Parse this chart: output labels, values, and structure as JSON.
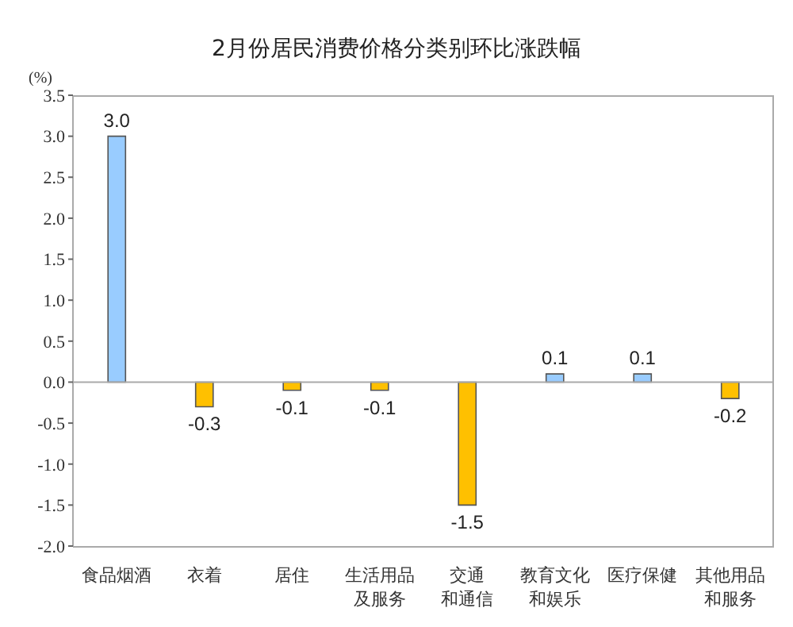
{
  "chart_data": {
    "type": "bar",
    "title": "2月份居民消费价格分类别环比涨跌幅",
    "ylabel": "(%)",
    "categories": [
      "食品烟酒",
      "衣着",
      "居住",
      "生活用品及服务",
      "交通和通信",
      "教育文化和娱乐",
      "医疗保健",
      "其他用品和服务"
    ],
    "value_labels": [
      "3.0",
      "-0.3",
      "-0.1",
      "-0.1",
      "-1.5",
      "0.1",
      "0.1",
      "-0.2"
    ],
    "values": [
      3.0,
      -0.3,
      -0.1,
      -0.1,
      -1.5,
      0.1,
      0.1,
      -0.2
    ],
    "colors": [
      "#99ccff",
      "#ffc000",
      "#ffc000",
      "#ffc000",
      "#ffc000",
      "#99ccff",
      "#99ccff",
      "#ffc000"
    ],
    "ylim": [
      -2.0,
      3.5
    ],
    "yticks": [
      {
        "value": -2,
        "label": "-2.0"
      },
      {
        "value": -1.5,
        "label": "-1.5"
      },
      {
        "value": -1,
        "label": "-1.0"
      },
      {
        "value": -0.5,
        "label": "-0.5"
      },
      {
        "value": 0,
        "label": "0.0"
      },
      {
        "value": 0.5,
        "label": "0.5"
      },
      {
        "value": 1,
        "label": "1.0"
      },
      {
        "value": 1.5,
        "label": "1.5"
      },
      {
        "value": 2,
        "label": "2.0"
      },
      {
        "value": 2.5,
        "label": "2.5"
      },
      {
        "value": 3,
        "label": "3.0"
      },
      {
        "value": 3.5,
        "label": "3.5"
      }
    ],
    "legend": false
  }
}
